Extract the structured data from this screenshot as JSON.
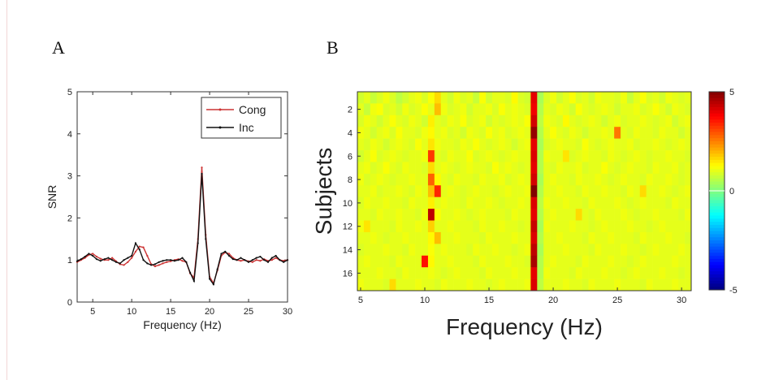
{
  "figure": {
    "panel_a_label": "A",
    "panel_b_label": "B"
  },
  "chart_data": [
    {
      "type": "line",
      "panel": "A",
      "xlabel": "Frequency (Hz)",
      "ylabel": "SNR",
      "xlim": [
        3,
        30
      ],
      "ylim": [
        0,
        5
      ],
      "xticks": [
        5,
        10,
        15,
        20,
        25,
        30
      ],
      "yticks": [
        0,
        1,
        2,
        3,
        4,
        5
      ],
      "grid": false,
      "legend": "top-right",
      "series": [
        {
          "name": "Cong",
          "color": "#cc3333",
          "x": [
            3,
            3.5,
            4,
            4.5,
            5,
            5.5,
            6,
            6.5,
            7,
            7.5,
            8,
            8.5,
            9,
            9.5,
            10,
            10.5,
            11,
            11.5,
            12,
            12.5,
            13,
            13.5,
            14,
            14.5,
            15,
            15.5,
            16,
            16.5,
            17,
            17.5,
            18,
            18.5,
            19,
            19.5,
            20,
            20.5,
            21,
            21.5,
            22,
            22.5,
            23,
            23.5,
            24,
            24.5,
            25,
            25.5,
            26,
            26.5,
            27,
            27.5,
            28,
            28.5,
            29,
            29.5,
            30
          ],
          "values": [
            0.95,
            1.0,
            1.05,
            1.12,
            1.15,
            1.08,
            1.03,
            1.0,
            1.0,
            1.05,
            0.97,
            0.9,
            0.88,
            0.95,
            1.05,
            1.2,
            1.32,
            1.3,
            1.1,
            0.9,
            0.85,
            0.88,
            0.92,
            0.95,
            0.97,
            1.0,
            1.02,
            0.98,
            0.95,
            0.68,
            0.58,
            1.5,
            3.2,
            1.6,
            0.6,
            0.45,
            0.75,
            1.1,
            1.18,
            1.15,
            1.05,
            1.0,
            0.98,
            1.0,
            0.97,
            0.95,
            1.0,
            0.98,
            1.02,
            0.98,
            1.0,
            1.05,
            1.0,
            0.98,
            1.0
          ]
        },
        {
          "name": "Inc",
          "color": "#111111",
          "x": [
            3,
            3.5,
            4,
            4.5,
            5,
            5.5,
            6,
            6.5,
            7,
            7.5,
            8,
            8.5,
            9,
            9.5,
            10,
            10.5,
            11,
            11.5,
            12,
            12.5,
            13,
            13.5,
            14,
            14.5,
            15,
            15.5,
            16,
            16.5,
            17,
            17.5,
            18,
            18.5,
            19,
            19.5,
            20,
            20.5,
            21,
            21.5,
            22,
            22.5,
            23,
            23.5,
            24,
            24.5,
            25,
            25.5,
            26,
            26.5,
            27,
            27.5,
            28,
            28.5,
            29,
            29.5,
            30
          ],
          "values": [
            0.97,
            1.02,
            1.08,
            1.15,
            1.1,
            1.02,
            0.98,
            1.02,
            1.05,
            1.0,
            0.95,
            0.92,
            1.0,
            1.05,
            1.1,
            1.4,
            1.25,
            1.0,
            0.92,
            0.88,
            0.9,
            0.95,
            0.98,
            1.0,
            1.0,
            0.98,
            1.0,
            1.05,
            0.95,
            0.7,
            0.5,
            1.4,
            3.05,
            1.5,
            0.55,
            0.42,
            0.78,
            1.15,
            1.2,
            1.1,
            1.02,
            1.0,
            1.05,
            1.0,
            0.95,
            1.0,
            1.05,
            1.08,
            1.0,
            0.95,
            1.05,
            1.1,
            1.0,
            0.95,
            1.0
          ]
        }
      ]
    },
    {
      "type": "heatmap",
      "panel": "B",
      "xlabel": "Frequency (Hz)",
      "ylabel": "Subjects",
      "xlim": [
        4.75,
        30.75
      ],
      "ylim": [
        0.5,
        17.5
      ],
      "xticks": [
        5,
        10,
        15,
        20,
        25,
        30
      ],
      "yticks": [
        2,
        4,
        6,
        8,
        10,
        12,
        14,
        16
      ],
      "x": [
        5,
        5.5,
        6,
        6.5,
        7,
        7.5,
        8,
        8.5,
        9,
        9.5,
        10,
        10.5,
        11,
        11.5,
        12,
        12.5,
        13,
        13.5,
        14,
        14.5,
        15,
        15.5,
        16,
        16.5,
        17,
        17.5,
        18,
        18.5,
        19,
        19.5,
        20,
        20.5,
        21,
        21.5,
        22,
        22.5,
        23,
        23.5,
        24,
        24.5,
        25,
        25.5,
        26,
        26.5,
        27,
        27.5,
        28,
        28.5,
        29,
        29.5,
        30,
        30.5
      ],
      "subjects": [
        1,
        2,
        3,
        4,
        5,
        6,
        7,
        8,
        9,
        10,
        11,
        12,
        13,
        14,
        15,
        16,
        17
      ],
      "values_note": "",
      "colorbar": {
        "min": -5,
        "max": 5,
        "ticks": [
          5,
          0,
          -5
        ]
      },
      "values": [
        [
          0.8,
          1.0,
          0.7,
          0.9,
          1.1,
          0.9,
          0.6,
          0.8,
          1.0,
          1.1,
          0.9,
          1.2,
          1.6,
          1.0,
          0.8,
          1.1,
          0.9,
          1.0,
          0.7,
          1.2,
          0.8,
          1.0,
          1.0,
          0.9,
          1.3,
          0.9,
          0.8,
          4.0,
          0.4,
          0.9,
          1.1,
          0.8,
          1.0,
          1.2,
          0.9,
          1.0,
          0.8,
          1.1,
          1.0,
          1.0,
          0.9,
          1.1,
          0.7,
          1.0,
          1.2,
          0.9,
          1.0,
          0.8,
          1.1,
          1.0,
          0.9,
          1.0
        ],
        [
          1.0,
          0.7,
          1.1,
          1.2,
          0.9,
          1.0,
          0.8,
          1.1,
          0.9,
          1.0,
          1.2,
          1.0,
          1.9,
          1.1,
          0.9,
          1.0,
          1.1,
          0.8,
          1.0,
          1.0,
          1.1,
          0.9,
          1.2,
          1.0,
          1.1,
          1.0,
          0.9,
          3.9,
          0.5,
          1.0,
          0.9,
          1.1,
          1.0,
          0.8,
          1.2,
          1.0,
          0.9,
          1.0,
          1.1,
          1.0,
          0.8,
          1.0,
          1.0,
          1.1,
          0.9,
          1.0,
          1.2,
          1.0,
          0.8,
          1.1,
          1.0,
          0.9
        ],
        [
          0.9,
          1.1,
          1.0,
          0.8,
          1.0,
          1.2,
          1.0,
          0.9,
          1.1,
          1.0,
          0.8,
          1.4,
          1.0,
          0.9,
          1.1,
          1.0,
          1.2,
          0.9,
          1.0,
          1.1,
          0.8,
          1.0,
          0.9,
          1.0,
          1.1,
          1.0,
          1.2,
          4.2,
          0.6,
          1.1,
          1.0,
          0.9,
          1.3,
          1.0,
          0.9,
          1.0,
          1.1,
          1.0,
          0.8,
          1.0,
          1.1,
          0.9,
          1.0,
          1.0,
          1.1,
          1.0,
          0.9,
          1.0,
          1.1,
          0.8,
          1.0,
          1.1
        ],
        [
          1.1,
          1.0,
          0.8,
          1.0,
          1.1,
          0.9,
          1.2,
          1.0,
          1.0,
          0.9,
          1.1,
          1.3,
          1.0,
          1.1,
          0.9,
          1.0,
          0.8,
          1.1,
          1.0,
          0.9,
          1.2,
          1.0,
          1.1,
          0.9,
          1.0,
          1.1,
          1.0,
          4.8,
          0.5,
          1.0,
          1.2,
          1.0,
          0.9,
          1.1,
          1.0,
          0.8,
          1.0,
          1.0,
          1.1,
          1.0,
          2.6,
          1.0,
          0.9,
          1.1,
          1.0,
          1.0,
          0.9,
          1.1,
          1.0,
          1.0,
          0.8,
          1.0
        ],
        [
          1.0,
          0.9,
          1.1,
          1.0,
          0.8,
          1.0,
          1.1,
          1.0,
          0.9,
          1.2,
          1.0,
          1.5,
          1.1,
          1.0,
          1.0,
          0.9,
          1.1,
          1.0,
          1.2,
          1.0,
          0.9,
          1.0,
          1.1,
          1.0,
          0.8,
          1.0,
          1.1,
          4.0,
          0.4,
          0.9,
          1.0,
          1.1,
          1.0,
          1.0,
          0.9,
          1.2,
          1.0,
          0.9,
          1.0,
          1.1,
          1.0,
          1.0,
          1.1,
          0.9,
          1.0,
          1.0,
          1.1,
          1.0,
          0.9,
          1.0,
          1.1,
          1.0
        ],
        [
          0.8,
          1.0,
          1.2,
          0.9,
          1.0,
          1.1,
          1.0,
          0.9,
          1.0,
          1.0,
          1.1,
          3.2,
          1.0,
          0.9,
          1.1,
          1.0,
          1.0,
          1.2,
          0.9,
          1.0,
          1.1,
          1.0,
          0.9,
          1.0,
          1.1,
          1.0,
          1.0,
          4.1,
          0.5,
          1.1,
          1.0,
          1.0,
          1.5,
          0.9,
          1.0,
          1.1,
          1.0,
          1.0,
          0.9,
          1.1,
          1.0,
          0.9,
          1.0,
          1.1,
          1.0,
          0.9,
          1.0,
          1.0,
          1.1,
          1.0,
          1.0,
          0.9
        ],
        [
          1.0,
          1.1,
          0.9,
          1.0,
          1.2,
          1.0,
          0.9,
          1.1,
          1.0,
          1.0,
          0.9,
          1.6,
          1.0,
          1.1,
          1.0,
          0.9,
          1.0,
          1.1,
          1.0,
          1.0,
          0.9,
          1.2,
          1.0,
          1.1,
          1.0,
          0.9,
          1.0,
          4.0,
          0.5,
          1.0,
          0.9,
          1.1,
          1.0,
          1.0,
          1.1,
          0.9,
          1.0,
          1.0,
          1.2,
          1.0,
          0.9,
          1.0,
          1.1,
          1.0,
          1.0,
          0.9,
          1.1,
          1.0,
          1.0,
          1.1,
          0.9,
          1.0
        ],
        [
          1.1,
          0.9,
          1.0,
          1.1,
          1.0,
          0.9,
          1.0,
          1.0,
          1.1,
          1.0,
          1.0,
          2.8,
          1.3,
          1.0,
          0.9,
          1.1,
          1.0,
          1.0,
          0.9,
          1.1,
          1.0,
          1.0,
          1.1,
          0.9,
          1.0,
          1.1,
          1.0,
          4.2,
          0.4,
          1.0,
          1.1,
          1.0,
          1.0,
          0.9,
          1.1,
          1.0,
          1.0,
          1.1,
          1.0,
          0.9,
          1.0,
          1.1,
          1.0,
          1.0,
          0.9,
          1.1,
          1.0,
          1.0,
          1.1,
          1.0,
          0.9,
          1.0
        ],
        [
          1.0,
          1.0,
          1.1,
          0.9,
          1.0,
          1.0,
          1.1,
          1.0,
          0.9,
          1.1,
          1.0,
          1.9,
          3.4,
          1.0,
          1.1,
          1.0,
          0.9,
          1.0,
          1.1,
          1.0,
          1.0,
          0.9,
          1.0,
          1.1,
          1.0,
          1.0,
          1.1,
          5.0,
          0.5,
          1.0,
          1.0,
          1.1,
          1.0,
          1.0,
          0.9,
          1.1,
          1.0,
          1.0,
          1.1,
          1.0,
          1.0,
          0.9,
          1.1,
          1.0,
          1.6,
          1.0,
          1.0,
          1.1,
          1.0,
          0.9,
          1.0,
          1.1
        ],
        [
          0.9,
          1.1,
          1.0,
          1.0,
          1.1,
          1.0,
          1.0,
          0.9,
          1.1,
          1.0,
          1.0,
          1.4,
          1.0,
          1.1,
          1.0,
          1.0,
          0.9,
          1.1,
          1.0,
          1.0,
          1.1,
          1.0,
          0.9,
          1.0,
          1.0,
          1.1,
          1.0,
          4.1,
          0.6,
          1.1,
          1.0,
          1.0,
          1.1,
          1.0,
          1.0,
          0.9,
          1.1,
          1.0,
          1.0,
          1.0,
          1.1,
          1.0,
          0.9,
          1.0,
          1.1,
          1.0,
          1.0,
          1.0,
          0.9,
          1.1,
          1.0,
          1.0
        ],
        [
          1.0,
          1.0,
          0.9,
          1.1,
          1.0,
          1.0,
          1.1,
          1.0,
          1.0,
          0.9,
          1.1,
          4.4,
          1.2,
          1.0,
          1.0,
          1.1,
          1.0,
          0.9,
          1.0,
          1.1,
          1.0,
          1.0,
          1.0,
          0.9,
          1.1,
          1.0,
          1.0,
          4.0,
          0.5,
          1.0,
          1.1,
          1.0,
          1.0,
          1.0,
          1.6,
          1.0,
          0.9,
          1.1,
          1.0,
          1.0,
          1.0,
          1.1,
          1.0,
          0.9,
          1.0,
          1.0,
          1.1,
          1.0,
          1.0,
          1.0,
          0.9,
          1.1
        ],
        [
          1.1,
          1.5,
          1.0,
          1.0,
          1.0,
          0.9,
          1.1,
          1.0,
          1.0,
          1.1,
          1.0,
          1.7,
          1.0,
          1.0,
          1.1,
          1.0,
          1.0,
          1.0,
          0.9,
          1.1,
          1.0,
          1.0,
          1.1,
          1.0,
          1.0,
          0.9,
          1.0,
          4.3,
          0.4,
          1.1,
          1.0,
          1.0,
          1.0,
          1.1,
          1.0,
          1.0,
          0.9,
          1.0,
          1.1,
          1.0,
          1.0,
          1.0,
          1.1,
          1.0,
          1.0,
          0.9,
          1.0,
          1.1,
          1.0,
          1.0,
          1.0,
          1.0
        ],
        [
          1.0,
          1.0,
          1.1,
          1.0,
          0.9,
          1.0,
          1.0,
          1.1,
          1.0,
          1.0,
          1.0,
          1.3,
          1.9,
          1.0,
          1.0,
          1.1,
          1.0,
          1.0,
          1.0,
          0.9,
          1.1,
          1.0,
          1.0,
          1.0,
          1.1,
          1.0,
          1.0,
          4.1,
          0.5,
          1.0,
          1.0,
          1.1,
          1.0,
          1.0,
          1.0,
          0.9,
          1.1,
          1.0,
          1.0,
          1.1,
          1.0,
          1.0,
          1.0,
          0.9,
          1.1,
          1.0,
          1.0,
          1.0,
          1.1,
          1.0,
          1.0,
          0.9
        ],
        [
          0.9,
          1.0,
          1.0,
          1.0,
          1.1,
          1.0,
          1.0,
          0.9,
          1.1,
          1.0,
          1.0,
          1.2,
          1.0,
          1.1,
          1.0,
          1.0,
          1.0,
          0.9,
          1.1,
          1.0,
          1.0,
          1.1,
          1.0,
          1.0,
          0.9,
          1.0,
          1.1,
          4.4,
          0.4,
          1.0,
          1.0,
          1.0,
          1.1,
          1.0,
          1.0,
          1.0,
          0.9,
          1.1,
          1.0,
          1.0,
          1.0,
          1.1,
          1.0,
          1.0,
          0.9,
          1.0,
          1.1,
          1.0,
          1.0,
          1.0,
          1.1,
          1.0
        ],
        [
          1.0,
          1.1,
          1.0,
          1.0,
          1.0,
          0.9,
          1.1,
          1.0,
          1.0,
          1.0,
          3.6,
          1.3,
          1.0,
          1.0,
          1.1,
          1.0,
          1.0,
          1.0,
          0.9,
          1.1,
          1.0,
          1.0,
          1.0,
          1.1,
          1.0,
          1.0,
          0.9,
          4.6,
          0.5,
          1.0,
          1.1,
          1.0,
          1.0,
          1.0,
          0.9,
          1.1,
          1.0,
          1.0,
          1.0,
          1.1,
          1.0,
          1.0,
          0.9,
          1.0,
          1.1,
          1.0,
          1.0,
          1.0,
          1.0,
          1.1,
          1.0,
          1.0
        ],
        [
          1.0,
          1.0,
          1.0,
          1.1,
          1.0,
          1.0,
          0.9,
          1.1,
          1.0,
          1.0,
          1.0,
          1.1,
          1.0,
          0.9,
          1.0,
          1.1,
          1.0,
          1.0,
          1.0,
          0.9,
          1.1,
          1.0,
          1.0,
          1.0,
          1.1,
          1.0,
          1.0,
          4.0,
          0.5,
          1.1,
          1.0,
          1.0,
          1.0,
          0.9,
          1.1,
          1.0,
          1.0,
          1.0,
          1.1,
          1.0,
          1.0,
          0.9,
          1.0,
          1.1,
          1.0,
          1.0,
          1.0,
          1.1,
          1.0,
          1.0,
          0.9,
          1.0
        ],
        [
          1.1,
          1.0,
          1.0,
          1.0,
          0.9,
          1.6,
          1.0,
          1.0,
          1.0,
          1.1,
          1.0,
          1.0,
          0.9,
          1.1,
          1.0,
          1.0,
          1.0,
          1.1,
          1.0,
          1.0,
          0.9,
          1.0,
          1.1,
          1.0,
          1.0,
          1.0,
          1.1,
          4.1,
          0.6,
          1.0,
          1.0,
          1.0,
          1.1,
          1.0,
          1.0,
          0.9,
          1.1,
          1.0,
          1.0,
          1.0,
          1.1,
          1.0,
          1.0,
          1.0,
          0.9,
          1.1,
          1.0,
          1.0,
          1.0,
          1.1,
          1.0,
          1.0
        ]
      ]
    }
  ]
}
